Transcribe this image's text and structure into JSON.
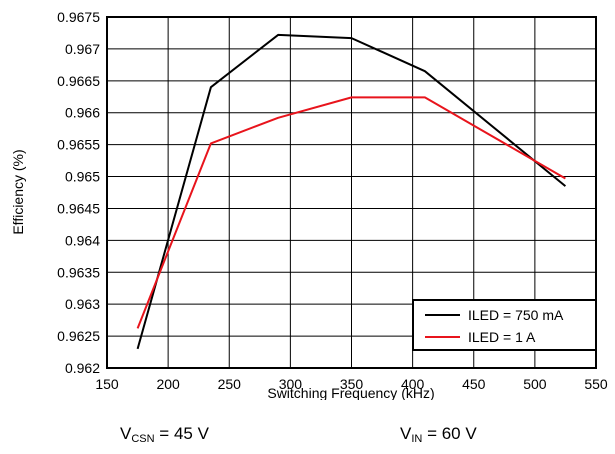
{
  "chart_data": {
    "type": "line",
    "title": "",
    "xlabel": "Switching Frequency (kHz)",
    "ylabel": "Efficiency (%)",
    "xlim": [
      150,
      550
    ],
    "ylim": [
      0.962,
      0.9675
    ],
    "x_ticks": [
      150,
      200,
      250,
      300,
      350,
      400,
      450,
      500,
      550
    ],
    "y_ticks": [
      0.962,
      0.9625,
      0.963,
      0.9635,
      0.964,
      0.9645,
      0.965,
      0.9655,
      0.966,
      0.9665,
      0.967,
      0.9675
    ],
    "y_tick_labels": [
      "0.962",
      "0.9625",
      "0.963",
      "0.9635",
      "0.964",
      "0.9645",
      "0.965",
      "0.9655",
      "0.966",
      "0.9665",
      "0.967",
      "0.9675"
    ],
    "grid": true,
    "legend_position": "bottom-right",
    "series": [
      {
        "name": "ILED = 750 mA",
        "color": "#000000",
        "x": [
          175,
          235,
          290,
          350,
          410,
          525
        ],
        "y": [
          0.9623,
          0.9664,
          0.96722,
          0.96717,
          0.96665,
          0.96485
        ]
      },
      {
        "name": "ILED = 1 A",
        "color": "#e8141c",
        "x": [
          175,
          235,
          290,
          350,
          410,
          525
        ],
        "y": [
          0.96262,
          0.96552,
          0.96592,
          0.96624,
          0.96624,
          0.96497
        ]
      }
    ]
  },
  "captions": {
    "left": {
      "main": "V",
      "sub": "CSN",
      "rest": " = 45 V"
    },
    "right": {
      "main": "V",
      "sub": "IN",
      "rest": " = 60 V"
    }
  }
}
